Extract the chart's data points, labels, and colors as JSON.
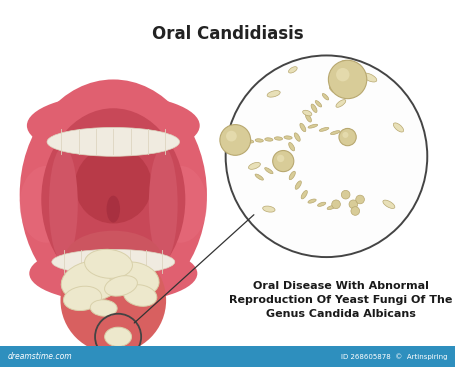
{
  "title": "Oral Candidiasis",
  "subtitle": "Oral Disease With Abnormal\nReproduction Of Yeast Fungi Of The\nGenus Candida Albicans",
  "background_color": "#ffffff",
  "title_fontsize": 12,
  "subtitle_fontsize": 8,
  "watermark_left": "dreamstime.com",
  "watermark_right": "ID 268605878  ©  Artinspiring",
  "banner_color": "#2e8fbe",
  "mouth_outer_color": "#e06070",
  "mouth_inner_color": "#c84858",
  "inner_gum_color": "#d05565",
  "throat_color": "#b83a48",
  "teeth_color": "#f0ebe0",
  "teeth_edge": "#ddd5c0",
  "tongue_color": "#d86060",
  "tongue_tip_color": "#cc5858",
  "patch_color": "#ede8cc",
  "patch_edge": "#d8d0aa",
  "fungal_fill": "#d8cc98",
  "fungal_edge": "#b8a870",
  "fungal_dark": "#a89050",
  "circle_color": "#444444",
  "line_color": "#333333"
}
